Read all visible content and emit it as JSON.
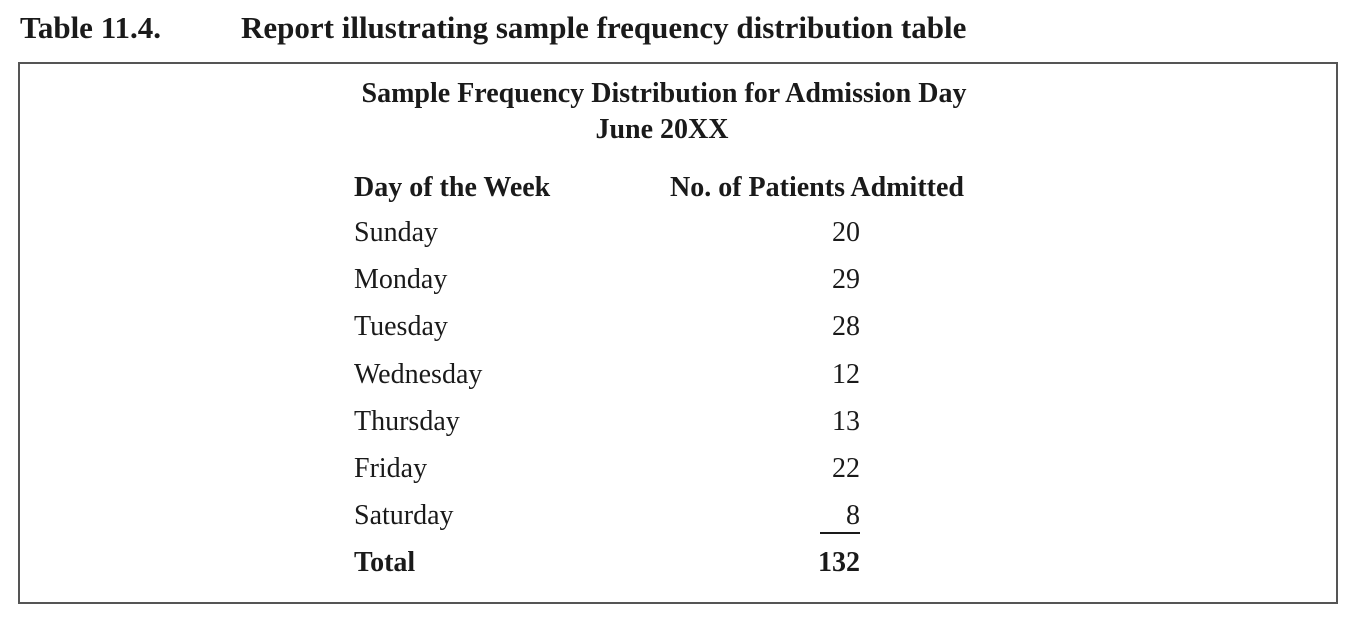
{
  "caption": {
    "number": "Table 11.4.",
    "text": "Report illustrating sample frequency distribution table"
  },
  "report": {
    "title": "Sample Frequency Distribution for Admission Day",
    "subtitle": "June 20XX",
    "columns": {
      "day": "Day of the Week",
      "count": "No. of Patients Admitted"
    },
    "rows": [
      {
        "day": "Sunday",
        "count": "20"
      },
      {
        "day": "Monday",
        "count": "29"
      },
      {
        "day": "Tuesday",
        "count": "28"
      },
      {
        "day": "Wednesday",
        "count": "12"
      },
      {
        "day": "Thursday",
        "count": "13"
      },
      {
        "day": "Friday",
        "count": "22"
      },
      {
        "day": "Saturday",
        "count": "8"
      }
    ],
    "total": {
      "label": "Total",
      "count": "132"
    }
  }
}
